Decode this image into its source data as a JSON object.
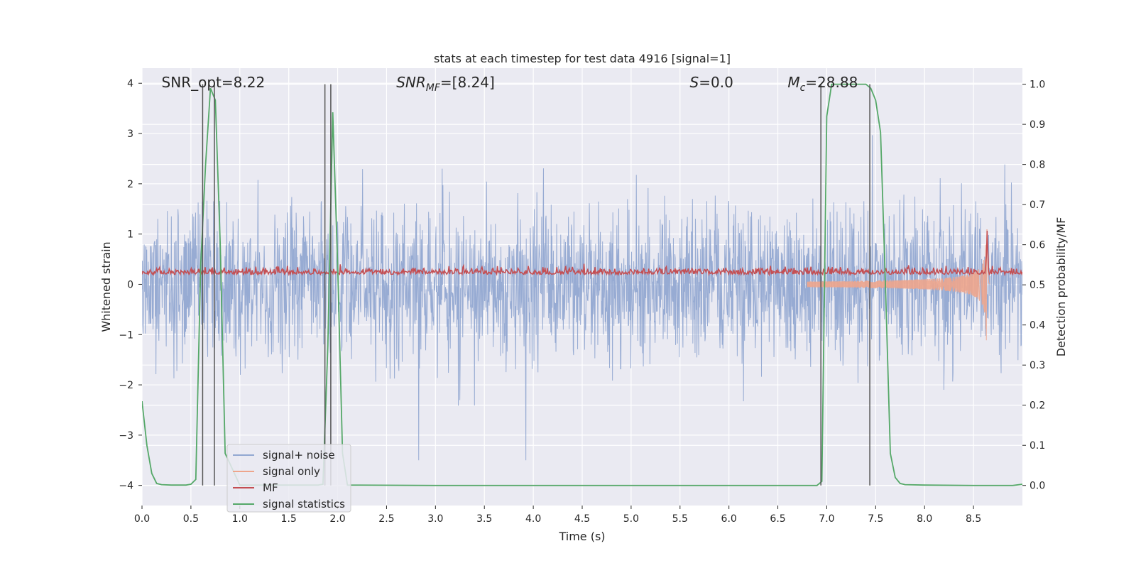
{
  "chart_data": {
    "type": "line",
    "title": "stats at each timestep for test data 4916 [signal=1]",
    "xlabel": "Time (s)",
    "ylabel": "Whitened strain",
    "ylabel_right": "Detection probability/MF",
    "xlim": [
      0.0,
      9.0
    ],
    "ylim": [
      -4.4,
      4.3
    ],
    "ylim_right": [
      -0.05,
      1.04
    ],
    "x_ticks": [
      0.0,
      0.5,
      1.0,
      1.5,
      2.0,
      2.5,
      3.0,
      3.5,
      4.0,
      4.5,
      5.0,
      5.5,
      6.0,
      6.5,
      7.0,
      7.5,
      8.0,
      8.5
    ],
    "x_tick_labels": [
      "0.0",
      "0.5",
      "1.0",
      "1.5",
      "2.0",
      "2.5",
      "3.0",
      "3.5",
      "4.0",
      "4.5",
      "5.0",
      "5.5",
      "6.0",
      "6.5",
      "7.0",
      "7.5",
      "8.0",
      "8.5"
    ],
    "y_ticks": [
      -4,
      -3,
      -2,
      -1,
      0,
      1,
      2,
      3,
      4
    ],
    "y_tick_labels": [
      "−4",
      "−3",
      "−2",
      "−1",
      "0",
      "1",
      "2",
      "3",
      "4"
    ],
    "y_right_ticks": [
      0.0,
      0.1,
      0.2,
      0.3,
      0.4,
      0.5,
      0.6,
      0.7,
      0.8,
      0.9,
      1.0
    ],
    "y_right_tick_labels": [
      "0.0",
      "0.1",
      "0.2",
      "0.3",
      "0.4",
      "0.5",
      "0.6",
      "0.7",
      "0.8",
      "0.9",
      "1.0"
    ],
    "grid": true,
    "legend_position": "bottom-left",
    "annotations": [
      {
        "text": "SNR_opt=8.22",
        "x": 0.2
      },
      {
        "text": "SNR_MF=[8.24]",
        "x": 2.6
      },
      {
        "text": "S=0.0",
        "x": 5.6
      },
      {
        "text": "M_c=28.88",
        "x": 6.6
      }
    ],
    "vertical_lines_x": [
      0.62,
      0.74,
      1.87,
      1.93,
      6.94,
      7.44
    ],
    "series": [
      {
        "name": "signal+ noise",
        "color": "#92a8d1",
        "axis": "left",
        "kind": "noise",
        "amplitude_range": [
          -3.5,
          3.9
        ]
      },
      {
        "name": "signal only",
        "color": "#eea58c",
        "axis": "left",
        "kind": "chirp",
        "peak_time": 8.64,
        "peak_amplitude": 1.7
      },
      {
        "name": "MF",
        "color": "#c44e52",
        "axis": "right",
        "kind": "mf",
        "baseline": 0.53,
        "peak_time": 8.64,
        "peak_value": 0.63
      },
      {
        "name": "signal statistics",
        "color": "#55a868",
        "axis": "right",
        "x": [
          0.0,
          0.05,
          0.1,
          0.15,
          0.2,
          0.3,
          0.45,
          0.5,
          0.55,
          0.6,
          0.65,
          0.7,
          0.75,
          0.8,
          0.85,
          1.0,
          1.5,
          1.7,
          1.8,
          1.85,
          1.9,
          1.95,
          2.0,
          2.05,
          2.1,
          3.0,
          4.0,
          5.0,
          6.0,
          6.5,
          6.9,
          6.95,
          7.0,
          7.05,
          7.1,
          7.2,
          7.3,
          7.4,
          7.45,
          7.5,
          7.55,
          7.6,
          7.65,
          7.7,
          7.75,
          7.8,
          8.0,
          8.5,
          8.9,
          9.0
        ],
        "y": [
          0.21,
          0.1,
          0.03,
          0.005,
          0.002,
          0.001,
          0.001,
          0.003,
          0.015,
          0.55,
          0.8,
          0.99,
          0.96,
          0.6,
          0.08,
          0.001,
          0.001,
          0.001,
          0.001,
          0.003,
          0.35,
          0.93,
          0.55,
          0.08,
          0.001,
          0.0,
          0.0,
          0.0,
          0.0,
          0.0,
          0.0,
          0.01,
          0.92,
          1.0,
          1.0,
          1.0,
          1.0,
          1.0,
          0.99,
          0.96,
          0.88,
          0.5,
          0.08,
          0.02,
          0.005,
          0.002,
          0.001,
          0.0,
          0.0,
          0.003
        ]
      }
    ]
  }
}
